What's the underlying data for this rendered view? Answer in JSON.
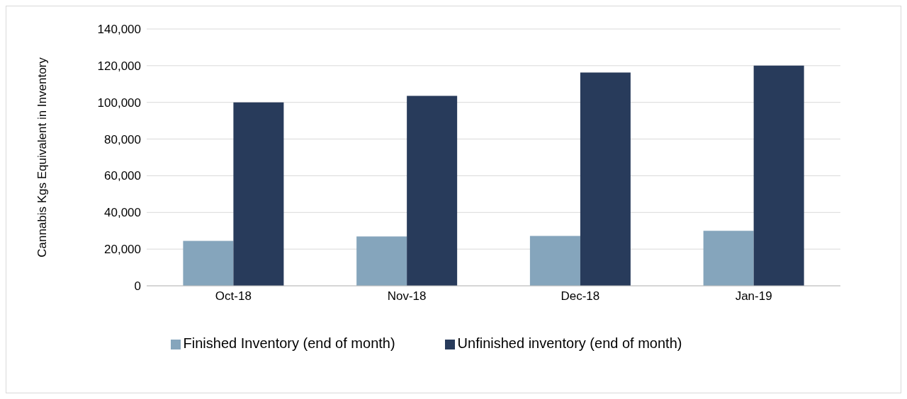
{
  "chart_data": {
    "type": "bar",
    "ylabel": "Cannabis Kgs Equivalent in Inventory",
    "categories": [
      "Oct-18",
      "Nov-18",
      "Dec-18",
      "Jan-19"
    ],
    "series": [
      {
        "name": "Finished Inventory (end of month)",
        "color": "#85a5bc",
        "values": [
          24500,
          26900,
          27200,
          30000
        ]
      },
      {
        "name": "Unfinished inventory (end of month)",
        "color": "#283b5b",
        "values": [
          100000,
          103600,
          116300,
          120000
        ]
      }
    ],
    "ylim": [
      0,
      140000
    ],
    "yticks": [
      0,
      {
        "value": 20000,
        "label": "20,000"
      },
      {
        "value": 40000,
        "label": "40,000"
      },
      {
        "value": 60000,
        "label": "60,000"
      },
      {
        "value": 80000,
        "label": "80,000"
      },
      {
        "value": 100000,
        "label": "100,000"
      },
      {
        "value": 120000,
        "label": "120,000"
      },
      {
        "value": 140000,
        "label": "140,000"
      }
    ],
    "grid": "y",
    "legend": "bottom"
  }
}
